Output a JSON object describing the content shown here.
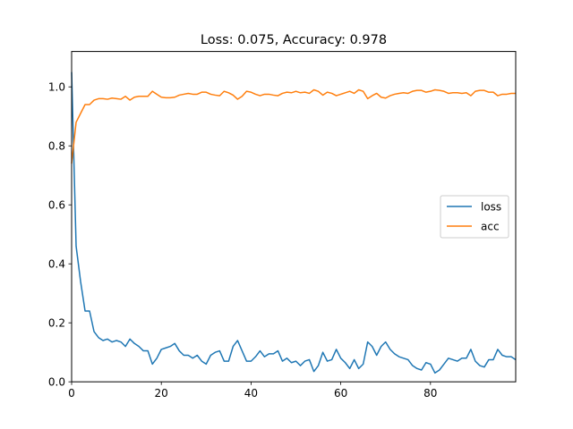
{
  "chart_data": {
    "type": "line",
    "title": "Loss: 0.075, Accuracy: 0.978",
    "xlabel": "",
    "ylabel": "",
    "xlim": [
      0,
      99
    ],
    "ylim": [
      0,
      1.12
    ],
    "x_ticks": [
      0,
      20,
      40,
      60,
      80
    ],
    "y_ticks": [
      0.0,
      0.2,
      0.4,
      0.6,
      0.8,
      1.0
    ],
    "x_tick_labels": [
      "0",
      "20",
      "40",
      "60",
      "80"
    ],
    "y_tick_labels": [
      "0.0",
      "0.2",
      "0.4",
      "0.6",
      "0.8",
      "1.0"
    ],
    "grid": false,
    "legend_position": "center-right",
    "series": [
      {
        "name": "loss",
        "color": "#1f77b4",
        "values": [
          1.05,
          0.46,
          0.34,
          0.24,
          0.24,
          0.17,
          0.15,
          0.14,
          0.145,
          0.135,
          0.14,
          0.135,
          0.12,
          0.145,
          0.13,
          0.12,
          0.105,
          0.105,
          0.06,
          0.08,
          0.11,
          0.115,
          0.12,
          0.13,
          0.105,
          0.09,
          0.09,
          0.08,
          0.09,
          0.07,
          0.06,
          0.09,
          0.1,
          0.105,
          0.07,
          0.07,
          0.12,
          0.14,
          0.105,
          0.07,
          0.07,
          0.085,
          0.105,
          0.085,
          0.095,
          0.095,
          0.105,
          0.07,
          0.08,
          0.065,
          0.07,
          0.055,
          0.07,
          0.075,
          0.035,
          0.055,
          0.1,
          0.07,
          0.075,
          0.11,
          0.08,
          0.065,
          0.045,
          0.075,
          0.045,
          0.06,
          0.135,
          0.12,
          0.09,
          0.12,
          0.135,
          0.11,
          0.095,
          0.085,
          0.08,
          0.075,
          0.055,
          0.045,
          0.04,
          0.065,
          0.06,
          0.03,
          0.04,
          0.06,
          0.08,
          0.075,
          0.07,
          0.08,
          0.08,
          0.11,
          0.07,
          0.055,
          0.05,
          0.075,
          0.075,
          0.11,
          0.09,
          0.085,
          0.085,
          0.075
        ]
      },
      {
        "name": "acc",
        "color": "#ff7f0e",
        "values": [
          0.74,
          0.88,
          0.91,
          0.94,
          0.94,
          0.955,
          0.96,
          0.96,
          0.958,
          0.962,
          0.96,
          0.958,
          0.968,
          0.955,
          0.965,
          0.968,
          0.968,
          0.968,
          0.985,
          0.975,
          0.965,
          0.963,
          0.963,
          0.965,
          0.972,
          0.975,
          0.978,
          0.975,
          0.975,
          0.982,
          0.982,
          0.975,
          0.972,
          0.97,
          0.985,
          0.98,
          0.972,
          0.958,
          0.968,
          0.985,
          0.982,
          0.975,
          0.97,
          0.975,
          0.975,
          0.972,
          0.97,
          0.978,
          0.982,
          0.98,
          0.985,
          0.98,
          0.982,
          0.978,
          0.99,
          0.985,
          0.972,
          0.982,
          0.978,
          0.97,
          0.975,
          0.98,
          0.985,
          0.978,
          0.99,
          0.985,
          0.96,
          0.97,
          0.978,
          0.965,
          0.962,
          0.97,
          0.975,
          0.978,
          0.98,
          0.978,
          0.985,
          0.988,
          0.988,
          0.982,
          0.985,
          0.99,
          0.988,
          0.985,
          0.978,
          0.98,
          0.98,
          0.978,
          0.98,
          0.97,
          0.985,
          0.988,
          0.988,
          0.982,
          0.982,
          0.97,
          0.975,
          0.975,
          0.978,
          0.978
        ]
      }
    ]
  }
}
